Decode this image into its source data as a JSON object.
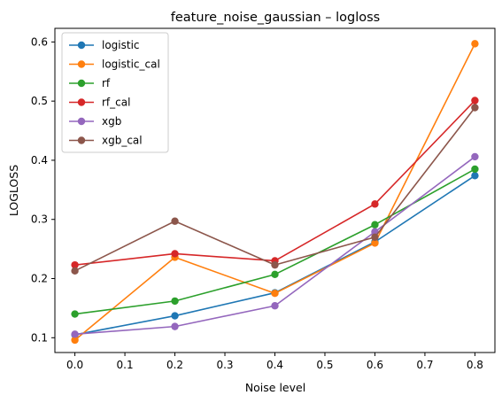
{
  "chart_data": {
    "type": "line",
    "title": "feature_noise_gaussian – logloss",
    "xlabel": "Noise level",
    "ylabel": "LOGLOSS",
    "x": [
      0.0,
      0.2,
      0.4,
      0.6,
      0.8
    ],
    "xlim": [
      -0.04,
      0.84
    ],
    "ylim": [
      0.075,
      0.623
    ],
    "xticks": [
      0.0,
      0.1,
      0.2,
      0.3,
      0.4,
      0.5,
      0.6,
      0.7,
      0.8
    ],
    "xtick_labels": [
      "0.0",
      "0.1",
      "0.2",
      "0.3",
      "0.4",
      "0.5",
      "0.6",
      "0.7",
      "0.8"
    ],
    "yticks": [
      0.1,
      0.2,
      0.3,
      0.4,
      0.5,
      0.6
    ],
    "ytick_labels": [
      "0.1",
      "0.2",
      "0.3",
      "0.4",
      "0.5",
      "0.6"
    ],
    "grid": false,
    "legend_position": "top-left",
    "series": [
      {
        "name": "logistic",
        "color": "#1f77b4",
        "values": [
          0.105,
          0.137,
          0.176,
          0.262,
          0.374
        ]
      },
      {
        "name": "logistic_cal",
        "color": "#ff7f0e",
        "values": [
          0.096,
          0.236,
          0.175,
          0.26,
          0.597
        ]
      },
      {
        "name": "rf",
        "color": "#2ca02c",
        "values": [
          0.14,
          0.162,
          0.207,
          0.291,
          0.385
        ]
      },
      {
        "name": "rf_cal",
        "color": "#d62728",
        "values": [
          0.223,
          0.242,
          0.23,
          0.326,
          0.501
        ]
      },
      {
        "name": "xgb",
        "color": "#9467bd",
        "values": [
          0.106,
          0.119,
          0.154,
          0.279,
          0.406
        ]
      },
      {
        "name": "xgb_cal",
        "color": "#8c564b",
        "values": [
          0.213,
          0.297,
          0.223,
          0.27,
          0.489
        ]
      }
    ]
  }
}
